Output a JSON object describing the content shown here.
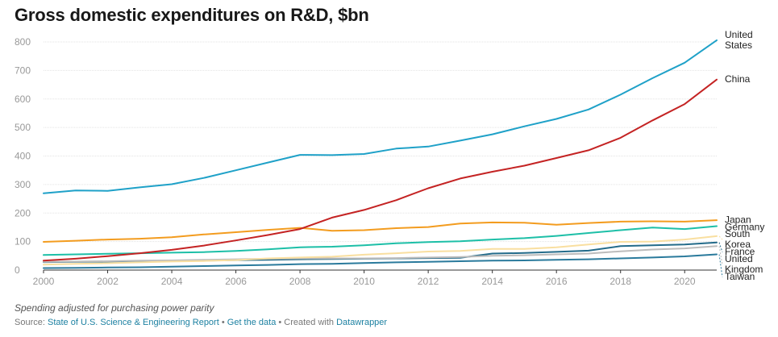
{
  "title": "Gross domestic expenditures on R&D, $bn",
  "note": "Spending adjusted for purchasing power parity",
  "source": {
    "prefix": "Source:",
    "report_link": "State of U.S. Science & Engineering Report",
    "sep1": "•",
    "data_link": "Get the data",
    "sep2": "• Created with",
    "tool_link": "Datawrapper"
  },
  "chart_data": {
    "type": "line",
    "title": "Gross domestic expenditures on R&D, $bn",
    "xlabel": "",
    "ylabel": "",
    "xlim": [
      2000,
      2021
    ],
    "ylim": [
      0,
      800
    ],
    "xticks": [
      2000,
      2002,
      2004,
      2006,
      2008,
      2010,
      2012,
      2014,
      2016,
      2018,
      2020
    ],
    "yticks": [
      0,
      100,
      200,
      300,
      400,
      500,
      600,
      700,
      800
    ],
    "grid": "horizontal",
    "legend": "direct labels at right end of lines",
    "x": [
      2000,
      2001,
      2002,
      2003,
      2004,
      2005,
      2006,
      2007,
      2008,
      2009,
      2010,
      2011,
      2012,
      2013,
      2014,
      2015,
      2016,
      2017,
      2018,
      2019,
      2020,
      2021
    ],
    "series": [
      {
        "name": "United States",
        "label_lines": [
          "United",
          "States"
        ],
        "color": "#1fa1c8",
        "width": 2,
        "values": [
          269,
          279,
          278,
          290,
          301,
          323,
          350,
          377,
          404,
          403,
          407,
          426,
          433,
          454,
          476,
          504,
          530,
          563,
          615,
          673,
          727,
          806
        ]
      },
      {
        "name": "China",
        "label_lines": [
          "China"
        ],
        "color": "#c42323",
        "width": 2,
        "values": [
          33,
          40,
          49,
          59,
          71,
          86,
          104,
          123,
          144,
          184,
          211,
          245,
          287,
          321,
          345,
          366,
          393,
          420,
          464,
          525,
          582,
          668
        ]
      },
      {
        "name": "Japan",
        "label_lines": [
          "Japan"
        ],
        "color": "#f39c1f",
        "width": 2,
        "values": [
          99,
          103,
          107,
          110,
          115,
          125,
          133,
          141,
          148,
          138,
          140,
          147,
          151,
          163,
          167,
          166,
          159,
          165,
          170,
          171,
          170,
          175
        ]
      },
      {
        "name": "Germany",
        "label_lines": [
          "Germany"
        ],
        "color": "#1dbfa7",
        "width": 2,
        "values": [
          53,
          55,
          57,
          59,
          61,
          63,
          67,
          73,
          80,
          82,
          87,
          94,
          98,
          101,
          107,
          112,
          120,
          130,
          140,
          149,
          144,
          154
        ]
      },
      {
        "name": "South Korea",
        "label_lines": [
          "South",
          "Korea"
        ],
        "color": "#f9dfa0",
        "width": 2,
        "values": [
          19,
          22,
          24,
          27,
          30,
          32,
          35,
          41,
          44,
          47,
          54,
          59,
          65,
          67,
          74,
          74,
          80,
          90,
          99,
          100,
          107,
          119
        ]
      },
      {
        "name": "United Kingdom",
        "label_lines": [
          "United",
          "Kingdom"
        ],
        "color": "#bcbcbc",
        "width": 2,
        "values": [
          29,
          30,
          31,
          33,
          34,
          36,
          38,
          40,
          41,
          41,
          41,
          42,
          44,
          46,
          50,
          52,
          55,
          58,
          66,
          72,
          76,
          84
        ]
      },
      {
        "name": "France",
        "label_lines": [
          "France"
        ],
        "color": "#236b8a",
        "width": 2,
        "values": [
          28,
          29,
          30,
          31,
          31,
          33,
          35,
          36,
          38,
          39,
          40,
          41,
          42,
          43,
          58,
          60,
          64,
          68,
          84,
          87,
          90,
          97
        ]
      },
      {
        "name": "Taiwan",
        "label_lines": [
          "Taiwan"
        ],
        "color": "#2a7a9c",
        "width": 2,
        "values": [
          7,
          8,
          9,
          10,
          12,
          14,
          16,
          18,
          21,
          22,
          25,
          27,
          29,
          31,
          33,
          34,
          36,
          38,
          41,
          44,
          48,
          55
        ]
      }
    ]
  }
}
